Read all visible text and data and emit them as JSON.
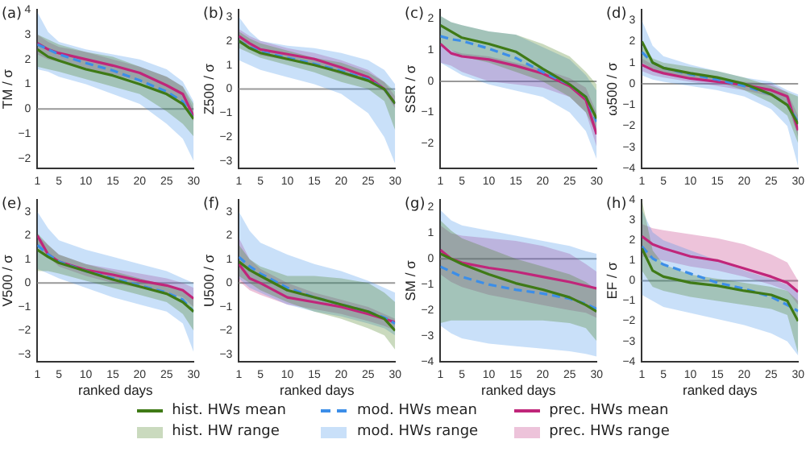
{
  "chart_data": [
    {
      "type": "line",
      "title": "(a)",
      "ylabel": "TM / σ",
      "x": [
        1,
        3,
        5,
        10,
        15,
        20,
        25,
        28,
        30
      ],
      "xlim": [
        1,
        30
      ],
      "xticks": [
        1,
        5,
        10,
        15,
        20,
        25,
        30
      ],
      "ylim": [
        -2.4,
        4
      ],
      "yticks": [
        -2,
        -1,
        0,
        1,
        2,
        3,
        4
      ],
      "grid": false,
      "legend": "bottom",
      "annotations": [
        "hist. HW range",
        "mod. HWs range",
        "prec. HWs range"
      ],
      "ref_lines": [
        {
          "axis": "y",
          "value": 0,
          "color": "#999999"
        }
      ],
      "series": [
        {
          "name": "hist. HWs mean",
          "color": "#3f7a16",
          "values": [
            2.4,
            2.1,
            1.95,
            1.6,
            1.35,
            1.0,
            0.6,
            0.2,
            -0.4
          ],
          "lower": [
            1.7,
            1.6,
            1.5,
            1.2,
            0.9,
            0.6,
            -0.1,
            -0.6,
            -1.1
          ],
          "upper": [
            3.0,
            2.8,
            2.6,
            2.3,
            2.1,
            1.7,
            1.3,
            0.9,
            0.2
          ]
        },
        {
          "name": "mod. HWs mean",
          "color": "#3c8ee8",
          "line_style": "dashed",
          "values": [
            2.6,
            2.4,
            2.2,
            1.85,
            1.55,
            1.15,
            0.7,
            0.3,
            -0.4
          ],
          "lower": [
            1.6,
            1.5,
            1.3,
            1.0,
            0.6,
            0.2,
            -0.6,
            -1.2,
            -2.1
          ],
          "upper": [
            3.9,
            3.1,
            2.7,
            2.4,
            2.2,
            2.0,
            1.6,
            1.1,
            0.3
          ]
        },
        {
          "name": "prec. HWs mean",
          "color": "#c0267a",
          "values": [
            2.65,
            2.4,
            2.25,
            2.0,
            1.75,
            1.45,
            0.95,
            0.6,
            -0.3
          ],
          "lower": [
            2.2,
            2.0,
            1.9,
            1.6,
            1.4,
            1.1,
            0.6,
            0.3,
            -0.5
          ],
          "upper": [
            3.0,
            2.7,
            2.5,
            2.3,
            2.0,
            1.7,
            1.3,
            0.9,
            0.0
          ]
        }
      ]
    },
    {
      "type": "line",
      "title": "(b)",
      "ylabel": "Z500 / σ",
      "x": [
        1,
        3,
        5,
        10,
        15,
        20,
        25,
        28,
        30
      ],
      "xlim": [
        1,
        30
      ],
      "xticks": [
        1,
        5,
        10,
        15,
        20,
        25,
        30
      ],
      "ylim": [
        -3.3,
        3.3
      ],
      "yticks": [
        -3,
        -2,
        -1,
        0,
        1,
        2,
        3
      ],
      "grid": false,
      "ref_lines": [
        {
          "axis": "y",
          "value": 0,
          "color": "#999999"
        }
      ],
      "series": [
        {
          "color": "#3f7a16",
          "values": [
            2.0,
            1.7,
            1.5,
            1.25,
            1.0,
            0.7,
            0.35,
            0.0,
            -0.6
          ],
          "lower": [
            1.7,
            1.5,
            1.3,
            1.0,
            0.7,
            0.3,
            0.0,
            -0.5,
            -1.7
          ],
          "upper": [
            2.4,
            2.1,
            1.9,
            1.6,
            1.3,
            1.1,
            0.7,
            0.3,
            -0.1
          ]
        },
        {
          "color": "#3c8ee8",
          "line_style": "dashed",
          "values": [
            2.0,
            1.75,
            1.55,
            1.3,
            1.05,
            0.75,
            0.4,
            0.0,
            -0.6
          ],
          "lower": [
            1.2,
            1.0,
            0.8,
            0.5,
            0.2,
            -0.2,
            -1.0,
            -2.0,
            -3.1
          ],
          "upper": [
            3.0,
            2.4,
            2.0,
            1.8,
            1.7,
            1.5,
            1.2,
            0.8,
            0.2
          ]
        },
        {
          "color": "#c0267a",
          "values": [
            2.2,
            1.9,
            1.65,
            1.45,
            1.25,
            0.9,
            0.5,
            0.0,
            -0.6
          ],
          "lower": [
            1.9,
            1.7,
            1.4,
            1.2,
            1.0,
            0.6,
            0.3,
            -0.1,
            -0.8
          ],
          "upper": [
            2.5,
            2.2,
            2.0,
            1.7,
            1.5,
            1.2,
            0.8,
            0.3,
            -0.3
          ]
        }
      ]
    },
    {
      "type": "line",
      "title": "(c)",
      "ylabel": "SSR / σ",
      "x": [
        1,
        3,
        5,
        10,
        15,
        20,
        25,
        28,
        30
      ],
      "xlim": [
        1,
        30
      ],
      "xticks": [
        1,
        5,
        10,
        15,
        20,
        25,
        30
      ],
      "ylim": [
        -2.8,
        2.3
      ],
      "yticks": [
        -2,
        -1,
        0,
        1,
        2
      ],
      "grid": false,
      "ref_lines": [
        {
          "axis": "y",
          "value": 0,
          "color": "#999999"
        }
      ],
      "series": [
        {
          "color": "#3f7a16",
          "values": [
            1.8,
            1.6,
            1.4,
            1.2,
            0.95,
            0.4,
            -0.1,
            -0.5,
            -1.2
          ],
          "lower": [
            1.2,
            1.0,
            0.8,
            0.6,
            0.3,
            0.0,
            -0.5,
            -1.0,
            -1.7
          ],
          "upper": [
            2.1,
            1.9,
            1.8,
            1.6,
            1.5,
            1.2,
            0.8,
            0.3,
            -0.1
          ]
        },
        {
          "color": "#3c8ee8",
          "line_style": "dashed",
          "values": [
            1.45,
            1.35,
            1.3,
            1.05,
            0.75,
            0.3,
            -0.1,
            -0.5,
            -1.3
          ],
          "lower": [
            0.6,
            0.4,
            0.2,
            -0.1,
            -0.3,
            -0.5,
            -1.0,
            -1.6,
            -2.5
          ],
          "upper": [
            2.1,
            1.9,
            1.8,
            1.6,
            1.5,
            1.1,
            0.7,
            0.2,
            -0.3
          ]
        },
        {
          "color": "#c0267a",
          "values": [
            1.2,
            0.9,
            0.8,
            0.7,
            0.5,
            0.25,
            -0.15,
            -0.6,
            -1.7
          ],
          "lower": [
            0.6,
            0.5,
            0.3,
            0.0,
            -0.1,
            -0.2,
            -0.5,
            -1.0,
            -2.1
          ],
          "upper": [
            1.2,
            1.0,
            0.9,
            0.8,
            0.6,
            0.4,
            0.1,
            -0.2,
            -1.0
          ]
        }
      ]
    },
    {
      "type": "line",
      "title": "(d)",
      "ylabel": "ω500 / σ",
      "x": [
        1,
        3,
        5,
        10,
        15,
        20,
        25,
        28,
        30
      ],
      "xlim": [
        1,
        30
      ],
      "xticks": [
        1,
        5,
        10,
        15,
        20,
        25,
        30
      ],
      "ylim": [
        -4,
        3.5
      ],
      "yticks": [
        -4,
        -3,
        -2,
        -1,
        0,
        1,
        2,
        3
      ],
      "grid": false,
      "ref_lines": [
        {
          "axis": "y",
          "value": 0,
          "color": "#999999"
        }
      ],
      "series": [
        {
          "color": "#3f7a16",
          "values": [
            2.0,
            1.0,
            0.75,
            0.5,
            0.3,
            0.0,
            -0.5,
            -1.0,
            -1.9
          ],
          "lower": [
            1.0,
            0.7,
            0.5,
            0.3,
            0.1,
            -0.3,
            -0.9,
            -1.5,
            -2.8
          ],
          "upper": [
            1.8,
            1.2,
            1.0,
            0.8,
            0.6,
            0.3,
            -0.1,
            -0.4,
            -0.6
          ]
        },
        {
          "color": "#3c8ee8",
          "line_style": "dashed",
          "values": [
            1.5,
            1.0,
            0.75,
            0.45,
            0.2,
            -0.1,
            -0.5,
            -1.0,
            -1.8
          ],
          "lower": [
            0.4,
            0.2,
            0.1,
            -0.1,
            -0.3,
            -0.6,
            -1.2,
            -2.0,
            -3.9
          ],
          "upper": [
            3.0,
            1.8,
            1.3,
            0.9,
            0.6,
            0.3,
            0.1,
            -0.3,
            -0.5
          ]
        },
        {
          "color": "#c0267a",
          "values": [
            0.9,
            0.65,
            0.5,
            0.25,
            0.1,
            -0.05,
            -0.3,
            -0.6,
            -2.2
          ],
          "lower": [
            0.6,
            0.4,
            0.3,
            0.1,
            -0.1,
            -0.3,
            -0.6,
            -1.0,
            -2.5
          ],
          "upper": [
            1.2,
            0.9,
            0.7,
            0.5,
            0.3,
            0.1,
            0.0,
            -0.4,
            -1.5
          ]
        }
      ]
    },
    {
      "type": "line",
      "title": "(e)",
      "ylabel": "V500 / σ",
      "xlabel": "ranked days",
      "x": [
        1,
        3,
        5,
        10,
        15,
        20,
        25,
        28,
        30
      ],
      "xlim": [
        1,
        30
      ],
      "xticks": [
        1,
        5,
        10,
        15,
        20,
        25,
        30
      ],
      "ylim": [
        -3.3,
        3.5
      ],
      "yticks": [
        -3,
        -2,
        -1,
        0,
        1,
        2,
        3
      ],
      "grid": false,
      "ref_lines": [
        {
          "axis": "y",
          "value": 0,
          "color": "#999999"
        }
      ],
      "series": [
        {
          "color": "#3f7a16",
          "values": [
            1.4,
            1.1,
            0.85,
            0.5,
            0.15,
            -0.15,
            -0.45,
            -0.8,
            -1.2
          ],
          "lower": [
            0.5,
            0.5,
            0.4,
            0.1,
            -0.2,
            -0.5,
            -0.8,
            -1.3,
            -2.0
          ],
          "upper": [
            2.1,
            1.6,
            1.2,
            0.8,
            0.5,
            0.2,
            -0.1,
            -0.3,
            -0.6
          ]
        },
        {
          "color": "#3c8ee8",
          "line_style": "dashed",
          "values": [
            1.6,
            1.2,
            0.9,
            0.5,
            0.2,
            -0.1,
            -0.4,
            -0.7,
            -1.2
          ],
          "lower": [
            0.6,
            0.4,
            0.2,
            -0.2,
            -0.6,
            -0.9,
            -1.2,
            -1.7,
            -2.9
          ],
          "upper": [
            3.0,
            2.3,
            1.8,
            1.4,
            1.1,
            0.8,
            0.5,
            0.2,
            0.0
          ]
        },
        {
          "color": "#c0267a",
          "values": [
            2.0,
            1.2,
            0.9,
            0.55,
            0.35,
            0.1,
            -0.1,
            -0.3,
            -0.65
          ],
          "lower": [
            1.5,
            1.1,
            0.7,
            0.3,
            0.0,
            -0.2,
            -0.4,
            -0.6,
            -1.0
          ],
          "upper": [
            2.0,
            1.6,
            1.2,
            0.8,
            0.6,
            0.4,
            0.2,
            0.0,
            -0.2
          ]
        }
      ]
    },
    {
      "type": "line",
      "title": "(f)",
      "ylabel": "U500 / σ",
      "xlabel": "ranked days",
      "x": [
        1,
        3,
        5,
        10,
        15,
        20,
        25,
        28,
        30
      ],
      "xlim": [
        1,
        30
      ],
      "xticks": [
        1,
        5,
        10,
        15,
        20,
        25,
        30
      ],
      "ylim": [
        -3.3,
        3.5
      ],
      "yticks": [
        -3,
        -2,
        -1,
        0,
        1,
        2,
        3
      ],
      "grid": false,
      "ref_lines": [
        {
          "axis": "y",
          "value": 0,
          "color": "#999999"
        }
      ],
      "series": [
        {
          "color": "#3f7a16",
          "values": [
            0.9,
            0.55,
            0.3,
            -0.3,
            -0.6,
            -0.9,
            -1.2,
            -1.5,
            -2.0
          ],
          "lower": [
            0.3,
            0.0,
            -0.3,
            -0.8,
            -1.2,
            -1.5,
            -1.9,
            -2.2,
            -2.8
          ],
          "upper": [
            1.6,
            1.0,
            0.7,
            0.3,
            0.3,
            0.2,
            0.0,
            -0.4,
            -0.8
          ]
        },
        {
          "color": "#3c8ee8",
          "line_style": "dashed",
          "values": [
            1.1,
            0.7,
            0.4,
            -0.2,
            -0.6,
            -0.9,
            -1.2,
            -1.45,
            -1.7
          ],
          "lower": [
            0.2,
            -0.2,
            -0.4,
            -0.9,
            -1.2,
            -1.4,
            -1.7,
            -1.9,
            -2.2
          ],
          "upper": [
            3.0,
            2.2,
            1.7,
            1.2,
            0.8,
            0.5,
            0.1,
            -0.2,
            -0.4
          ]
        },
        {
          "color": "#c0267a",
          "values": [
            0.8,
            0.2,
            0.0,
            -0.6,
            -0.8,
            -1.0,
            -1.3,
            -1.5,
            -1.65
          ],
          "lower": [
            0.1,
            -0.3,
            -0.5,
            -0.9,
            -1.1,
            -1.3,
            -1.6,
            -1.8,
            -2.0
          ],
          "upper": [
            1.9,
            1.0,
            0.6,
            0.0,
            -0.4,
            -0.7,
            -1.0,
            -1.3,
            -1.5
          ]
        }
      ]
    },
    {
      "type": "line",
      "title": "(g)",
      "ylabel": "SM / σ",
      "xlabel": "ranked days",
      "x": [
        1,
        3,
        5,
        10,
        15,
        20,
        25,
        28,
        30
      ],
      "xlim": [
        1,
        30
      ],
      "xticks": [
        1,
        5,
        10,
        15,
        20,
        25,
        30
      ],
      "ylim": [
        -4,
        2.3
      ],
      "yticks": [
        -4,
        -3,
        -2,
        -1,
        0,
        1,
        2
      ],
      "grid": false,
      "ref_lines": [
        {
          "axis": "y",
          "value": 0,
          "color": "#999999"
        }
      ],
      "series": [
        {
          "color": "#3f7a16",
          "values": [
            0.2,
            0.0,
            -0.2,
            -0.6,
            -0.95,
            -1.2,
            -1.5,
            -1.8,
            -2.05
          ],
          "lower": [
            -2.5,
            -2.4,
            -2.4,
            -2.4,
            -2.4,
            -2.4,
            -2.5,
            -2.7,
            -3.2
          ],
          "upper": [
            1.5,
            1.1,
            0.8,
            0.4,
            0.0,
            -0.3,
            -0.6,
            -0.9,
            -1.2
          ]
        },
        {
          "color": "#3c8ee8",
          "line_style": "dashed",
          "values": [
            -0.3,
            -0.5,
            -0.7,
            -1.0,
            -1.2,
            -1.35,
            -1.55,
            -1.75,
            -1.95
          ],
          "lower": [
            -2.6,
            -2.9,
            -3.1,
            -3.3,
            -3.4,
            -3.5,
            -3.6,
            -3.7,
            -3.8
          ],
          "upper": [
            1.9,
            1.5,
            1.3,
            1.1,
            0.9,
            0.7,
            0.5,
            0.3,
            0.2
          ]
        },
        {
          "color": "#c0267a",
          "values": [
            0.35,
            0.0,
            -0.15,
            -0.35,
            -0.5,
            -0.7,
            -0.9,
            -1.05,
            -1.15
          ],
          "lower": [
            -0.6,
            -0.9,
            -1.1,
            -1.4,
            -1.6,
            -1.8,
            -2.0,
            -2.1,
            -2.3
          ],
          "upper": [
            1.3,
            1.0,
            0.9,
            0.8,
            0.7,
            0.5,
            0.2,
            -0.2,
            -0.5
          ]
        }
      ]
    },
    {
      "type": "line",
      "title": "(h)",
      "ylabel": "EF / σ",
      "xlabel": "ranked days",
      "x": [
        1,
        3,
        5,
        10,
        15,
        20,
        25,
        28,
        30
      ],
      "xlim": [
        1,
        30
      ],
      "xticks": [
        1,
        5,
        10,
        15,
        20,
        25,
        30
      ],
      "ylim": [
        -4,
        4
      ],
      "yticks": [
        -4,
        -3,
        -2,
        -1,
        0,
        1,
        2,
        3,
        4
      ],
      "grid": false,
      "ref_lines": [
        {
          "axis": "y",
          "value": 0,
          "color": "#999999"
        }
      ],
      "series": [
        {
          "color": "#3f7a16",
          "values": [
            1.6,
            0.5,
            0.2,
            -0.1,
            -0.25,
            -0.5,
            -0.7,
            -1.0,
            -2.0
          ],
          "lower": [
            0.5,
            -0.3,
            -0.5,
            -0.8,
            -1.0,
            -1.2,
            -1.4,
            -1.7,
            -3.6
          ],
          "upper": [
            4.0,
            1.5,
            0.8,
            0.3,
            0.1,
            -0.1,
            -0.3,
            -0.5,
            -1.0
          ]
        },
        {
          "color": "#3c8ee8",
          "line_style": "dashed",
          "values": [
            1.7,
            1.1,
            0.8,
            0.35,
            -0.1,
            -0.4,
            -0.8,
            -1.2,
            -1.5
          ],
          "lower": [
            -0.7,
            -1.0,
            -1.3,
            -1.6,
            -1.9,
            -2.2,
            -2.6,
            -3.0,
            -3.7
          ],
          "upper": [
            3.5,
            2.4,
            2.0,
            1.5,
            1.0,
            0.5,
            0.1,
            -0.2,
            -0.6
          ]
        },
        {
          "color": "#c0267a",
          "values": [
            2.2,
            1.8,
            1.6,
            1.2,
            1.0,
            0.6,
            0.2,
            -0.1,
            -0.55
          ],
          "lower": [
            1.2,
            1.1,
            1.0,
            0.7,
            0.5,
            0.2,
            -0.2,
            -0.5,
            -1.2
          ],
          "upper": [
            2.8,
            2.6,
            2.5,
            2.3,
            2.1,
            1.8,
            1.3,
            0.9,
            0.0
          ]
        }
      ]
    }
  ]
}
